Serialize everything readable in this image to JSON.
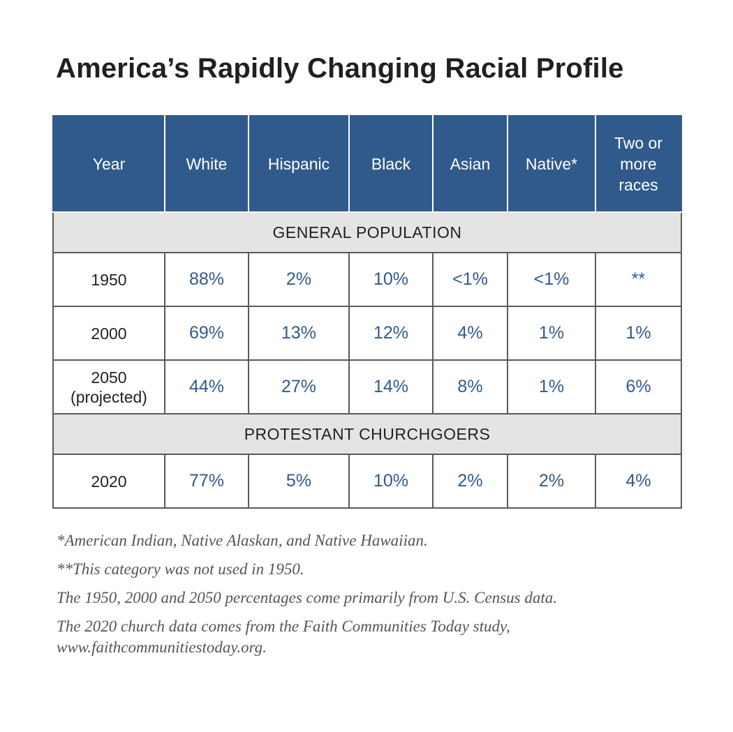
{
  "chart_data": {
    "type": "table",
    "title": "America’s Rapidly Changing Racial Profile",
    "columns": [
      "Year",
      "White",
      "Hispanic",
      "Black",
      "Asian",
      "Native*",
      "Two or more races"
    ],
    "sections": [
      {
        "label": "GENERAL POPULATION",
        "rows": [
          {
            "year": "1950",
            "values": [
              "88%",
              "2%",
              "10%",
              "<1%",
              "<1%",
              "**"
            ]
          },
          {
            "year": "2000",
            "values": [
              "69%",
              "13%",
              "12%",
              "4%",
              "1%",
              "1%"
            ]
          },
          {
            "year": "2050 (projected)",
            "values": [
              "44%",
              "27%",
              "14%",
              "8%",
              "1%",
              "6%"
            ]
          }
        ]
      },
      {
        "label": "PROTESTANT CHURCHGOERS",
        "rows": [
          {
            "year": "2020",
            "values": [
              "77%",
              "5%",
              "10%",
              "2%",
              "2%",
              "4%"
            ]
          }
        ]
      }
    ]
  },
  "footnotes": [
    "*American Indian, Native Alaskan, and Native Hawaiian.",
    "**This category was not used in 1950.",
    "The 1950, 2000 and 2050 percentages come primarily from U.S. Census data.",
    "The 2020 church data comes from the Faith Communities Today study, www.faithcommunitiestoday.org."
  ],
  "colors": {
    "header_bg": "#315a8c",
    "value_text": "#315a8c",
    "section_bg": "#e4e4e4"
  }
}
